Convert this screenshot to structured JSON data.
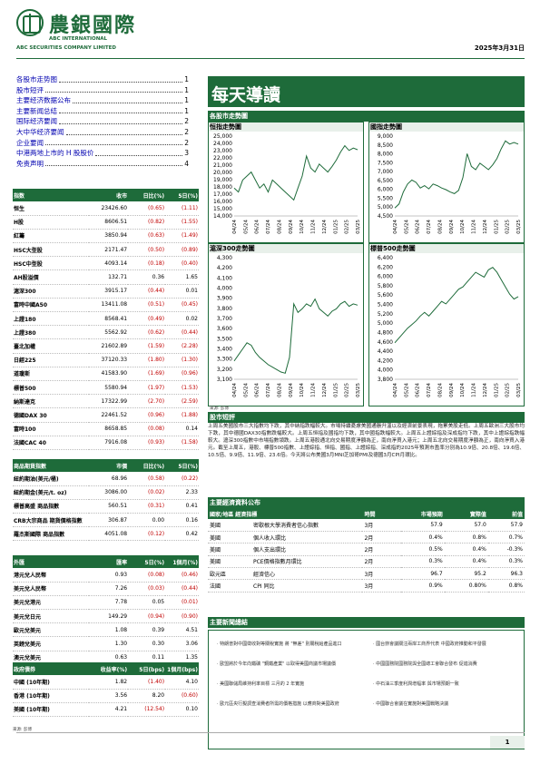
{
  "header": {
    "logo_cn": "農銀國際",
    "logo_en_line1": "ABC INTERNATIONAL",
    "logo_en_line2": "ABC SECURITIES COMPANY LIMITED",
    "date": "2025年3月31日",
    "brand_color": "#1e6b3a"
  },
  "toc": [
    {
      "title": "各股市走势图",
      "page": "1"
    },
    {
      "title": "股市短评",
      "page": "1"
    },
    {
      "title": "主要经济数据公布",
      "page": "1"
    },
    {
      "title": "主要新闻总结",
      "page": "1"
    },
    {
      "title": "国际经济要闻",
      "page": "2"
    },
    {
      "title": "大中华经济要闻",
      "page": "2"
    },
    {
      "title": "企业要闻",
      "page": "2"
    },
    {
      "title": "中港两地上市的 H 股股价",
      "page": "3"
    },
    {
      "title": "免责声明",
      "page": "4"
    }
  ],
  "index_table": {
    "headers": [
      "指数",
      "收市",
      "日比(%)",
      "5日(%)"
    ],
    "rows": [
      [
        "恒生",
        "23426.60",
        "(0.65)",
        "(1.11)"
      ],
      [
        "H股",
        "8606.51",
        "(0.82)",
        "(1.55)"
      ],
      [
        "紅籌",
        "3850.94",
        "(0.63)",
        "(1.49)"
      ],
      [
        "HSC大型股",
        "2171.47",
        "(0.50)",
        "(0.89)"
      ],
      [
        "HSC中型股",
        "4093.14",
        "(0.18)",
        "(0.40)"
      ],
      [
        "AH股溢價",
        "132.71",
        "0.36",
        "1.65"
      ],
      [
        "滬深300",
        "3915.17",
        "(0.44)",
        "0.01"
      ],
      [
        "富時中國A50",
        "13411.08",
        "(0.51)",
        "(0.45)"
      ],
      [
        "上證180",
        "8568.41",
        "(0.49)",
        "0.02"
      ],
      [
        "上證380",
        "5562.92",
        "(0.62)",
        "(0.44)"
      ],
      [
        "臺北加權",
        "21602.89",
        "(1.59)",
        "(2.28)"
      ],
      [
        "日經225",
        "37120.33",
        "(1.80)",
        "(1.30)"
      ],
      [
        "道瓊斯",
        "41583.90",
        "(1.69)",
        "(0.96)"
      ],
      [
        "標普500",
        "5580.94",
        "(1.97)",
        "(1.53)"
      ],
      [
        "納斯達克",
        "17322.99",
        "(2.70)",
        "(2.59)"
      ],
      [
        "德國DAX 30",
        "22461.52",
        "(0.96)",
        "(1.88)"
      ],
      [
        "富時100",
        "8658.85",
        "(0.08)",
        "0.14"
      ],
      [
        "法國CAC 40",
        "7916.08",
        "(0.93)",
        "(1.58)"
      ]
    ]
  },
  "commodity_table": {
    "headers": [
      "商品期貨指數",
      "市價",
      "日比(%)",
      "5日(%)"
    ],
    "rows": [
      [
        "紐約期油(美元/桶)",
        "68.96",
        "(0.58)",
        "(0.22)"
      ],
      [
        "紐約期金(美元/t. oz)",
        "3086.00",
        "(0.02)",
        "2.33"
      ],
      [
        "標普高盛 商品指數",
        "560.51",
        "(0.31)",
        "0.41"
      ],
      [
        "CRB大宗商品 期貨價格指數",
        "306.87",
        "0.00",
        "0.16"
      ],
      [
        "羅杰斯國際 商品指數",
        "4051.08",
        "(0.12)",
        "0.42"
      ]
    ]
  },
  "fx_table": {
    "headers": [
      "外匯",
      "匯率",
      "5日(%)",
      "1個月(%)"
    ],
    "rows": [
      [
        "港元兌人民幣",
        "0.93",
        "(0.08)",
        "(0.46)"
      ],
      [
        "美元兌人民幣",
        "7.26",
        "(0.03)",
        "(0.44)"
      ],
      [
        "美元兌港元",
        "7.78",
        "0.05",
        "(0.01)"
      ],
      [
        "美元兌日元",
        "149.29",
        "(0.94)",
        "(0.90)"
      ],
      [
        "歐元兌美元",
        "1.08",
        "0.39",
        "4.51"
      ],
      [
        "英鎊兌美元",
        "1.30",
        "0.30",
        "3.06"
      ],
      [
        "澳元兌美元",
        "0.63",
        "0.11",
        "1.35"
      ]
    ]
  },
  "bond_table": {
    "headers": [
      "政府債券",
      "收益率(%)",
      "5日(bps)",
      "1個月(bps)"
    ],
    "rows": [
      [
        "中國 (10年期)",
        "1.82",
        "(1.40)",
        "4.10"
      ],
      [
        "香港 (10年期)",
        "3.56",
        "8.20",
        "(0.60)"
      ],
      [
        "美國 (10年期)",
        "4.21",
        "(12.54)",
        "0.10"
      ]
    ]
  },
  "table_source": "來源: 彭博",
  "main_title": "每天導讀",
  "section_charts": "各股市走勢圖",
  "charts": [
    {
      "title": "恒指走勢圖",
      "labels": [
        "25,000",
        "24,000",
        "23,000",
        "22,000",
        "21,000",
        "20,000",
        "19,000",
        "18,000",
        "17,000",
        "16,000",
        "15,000",
        "14,000"
      ],
      "xlabels": [
        "04/24",
        "05/24",
        "06/24",
        "07/24",
        "08/24",
        "09/24",
        "10/24",
        "11/24",
        "12/24",
        "01/25",
        "02/25",
        "03/25"
      ]
    },
    {
      "title": "國指走勢圖",
      "labels": [
        "9,000",
        "8,500",
        "8,000",
        "7,500",
        "7,000",
        "6,500",
        "6,000",
        "5,500",
        "5,000",
        "4,500"
      ],
      "xlabels": [
        "04/24",
        "05/24",
        "06/24",
        "07/24",
        "08/24",
        "09/24",
        "10/24",
        "11/24",
        "12/24",
        "01/25",
        "02/25",
        "03/25"
      ]
    },
    {
      "title": "滬深300走勢圖",
      "labels": [
        "4,300",
        "4,200",
        "4,100",
        "4,000",
        "3,900",
        "3,800",
        "3,700",
        "3,600",
        "3,500",
        "3,400",
        "3,300",
        "3,200",
        "3,100"
      ],
      "xlabels": [
        "04/24",
        "05/24",
        "06/24",
        "07/24",
        "08/24",
        "09/24",
        "10/24",
        "11/24",
        "12/24",
        "01/25",
        "02/25",
        "03/25"
      ]
    },
    {
      "title": "標普500走勢圖",
      "labels": [
        "6,400",
        "6,200",
        "6,000",
        "5,800",
        "5,600",
        "5,400",
        "5,200",
        "5,000",
        "4,800",
        "4,600",
        "4,400",
        "4,200",
        "4,000",
        "3,800"
      ],
      "xlabels": [
        "04/24",
        "05/24",
        "06/24",
        "07/24",
        "08/24",
        "09/24",
        "10/24",
        "11/24",
        "12/24",
        "01/25",
        "02/25",
        "03/25"
      ]
    }
  ],
  "chart_source": "來源: 彭博",
  "section_summary": "股市短評",
  "summary_text": "上周五美國股市三大指數均下跌，其中納指跌幅較大。市場持續憂慮美國通脹升溫以及經濟前景表現，拖累美股走低。上周五歐洲三大股市均下跌，其中德國DAX30指數跌幅較大。上周五恒指及國指均下跌，其中國指跌幅較大。上周五上證綜指及深成指均下跌，其中上證綜指跌幅較大。滬深300指數中市場指數領跌。上周五港股通北向交易期度淨額為正，南向淨買入港元；上周五北向交易期度淨額為正，南向淨買入港元。截至上周五，港股、標普500指數、上證綜指、恒指、國指、上證綜指、深成指的2025年預測市盈率分別為10.9倍、20.8倍、19.6倍、10.5倍、9.9倍、11.9倍、23.6倍。今天將公布美國3月MNI芝加哥PMI及德國3月CPI月環比。",
  "section_econ": "主要經濟資料公布",
  "econ_table": {
    "headers": [
      "國家/地區 經濟指標",
      "時間",
      "市場預期",
      "實際值",
      "前值"
    ],
    "rows": [
      [
        "美國",
        "密歇根大學消費者信心指數",
        "3月",
        "57.9",
        "57.0",
        "57.9"
      ],
      [
        "美國",
        "個人收入環比",
        "2月",
        "0.4%",
        "0.8%",
        "0.7%"
      ],
      [
        "美國",
        "個人支出環比",
        "2月",
        "0.5%",
        "0.4%",
        "-0.3%"
      ],
      [
        "美國",
        "PCE價格指數月環比",
        "2月",
        "0.3%",
        "0.4%",
        "0.3%"
      ],
      [
        "歐元區",
        "經濟信心",
        "3月",
        "96.7",
        "95.2",
        "96.3"
      ],
      [
        "法國",
        "CPI 同比",
        "3月",
        "0.9%",
        "0.80%",
        "0.8%"
      ]
    ]
  },
  "section_news": "主要新聞總結",
  "news_left": [
    "· 特朗普對中國徵收對等關稅實施 將 \"無差\" 別關稅給產品進口",
    "· 歐盟將於今年向鐵礦 \"鋼鐵產業\" 以取得美國商議市場議價",
    "· 美國聯儲局維持利率目標 三月的 2 年實施",
    "· 歐元區央行擬調查消費者所需的價格措施 以應商對美國政府"
  ],
  "news_right": [
    "· 國台辦會議關注兩岸工商界代表 中國政府推動和平發展",
    "· 中國國務院國務院與全國總工會聯合發布 促進消費",
    "· 中石油三季度利潤增幅率 與市場預期一致",
    "· 中國聯合會議在實施對美國戰略決議"
  ],
  "page_no": "1"
}
